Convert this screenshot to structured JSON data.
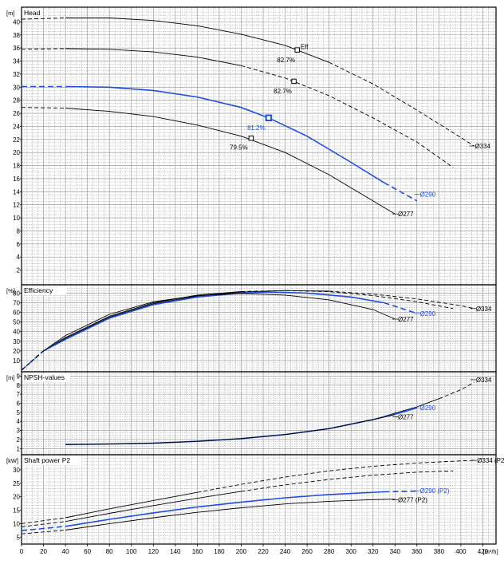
{
  "colors": {
    "selected": "#1f4fd6",
    "other": "#000000",
    "grid": "#8c8c8c",
    "background": "#ffffff"
  },
  "x_axis": {
    "unit": "[m³/h]",
    "ticks": [
      0,
      20,
      40,
      60,
      80,
      100,
      120,
      140,
      160,
      180,
      200,
      220,
      240,
      260,
      280,
      300,
      320,
      340,
      360,
      380,
      400,
      420
    ]
  },
  "chart_data": [
    {
      "type": "line",
      "title": "Head",
      "ylabel": "[m]",
      "xlim": [
        0,
        432
      ],
      "ylim": [
        0,
        42
      ],
      "yticks": [
        2,
        4,
        6,
        8,
        10,
        12,
        14,
        16,
        18,
        20,
        22,
        24,
        26,
        28,
        30,
        32,
        34,
        36,
        38,
        40
      ],
      "series": [
        {
          "name": "Ø334",
          "color": "#000000",
          "selected": false,
          "points": [
            [
              0,
              40.4
            ],
            [
              40,
              40.6
            ],
            [
              80,
              40.6
            ],
            [
              120,
              40.2
            ],
            [
              160,
              39.4
            ],
            [
              200,
              38.1
            ],
            [
              240,
              36.4
            ],
            [
              280,
              33.8
            ],
            [
              320,
              30.5
            ],
            [
              360,
              26.5
            ],
            [
              400,
              22.3
            ],
            [
              412,
              21.0
            ]
          ],
          "solid_range": [
            40,
            280
          ],
          "label_at": [
            412,
            21.0
          ]
        },
        {
          "name": "",
          "color": "#000000",
          "selected": false,
          "points": [
            [
              0,
              35.8
            ],
            [
              40,
              35.9
            ],
            [
              80,
              35.8
            ],
            [
              120,
              35.4
            ],
            [
              160,
              34.6
            ],
            [
              200,
              33.3
            ],
            [
              240,
              31.4
            ],
            [
              280,
              28.7
            ],
            [
              320,
              25.3
            ],
            [
              360,
              21.6
            ],
            [
              393,
              17.7
            ]
          ],
          "solid_range": [
            40,
            210
          ],
          "label_at": null
        },
        {
          "name": "Ø290",
          "color": "#1f4fd6",
          "selected": true,
          "points": [
            [
              0,
              30.1
            ],
            [
              40,
              30.1
            ],
            [
              80,
              30.0
            ],
            [
              120,
              29.5
            ],
            [
              160,
              28.5
            ],
            [
              200,
              26.9
            ],
            [
              225,
              25.3
            ],
            [
              260,
              22.5
            ],
            [
              300,
              18.5
            ],
            [
              330,
              15.4
            ],
            [
              360,
              12.6
            ]
          ],
          "solid_range": [
            40,
            330
          ],
          "label_at": [
            362,
            13.6
          ]
        },
        {
          "name": "Ø277",
          "color": "#000000",
          "selected": false,
          "points": [
            [
              0,
              26.9
            ],
            [
              40,
              26.8
            ],
            [
              80,
              26.3
            ],
            [
              120,
              25.5
            ],
            [
              160,
              24.2
            ],
            [
              200,
              22.5
            ],
            [
              240,
              20.0
            ],
            [
              280,
              16.6
            ],
            [
              320,
              12.6
            ],
            [
              340,
              10.6
            ]
          ],
          "solid_range": [
            40,
            340
          ],
          "label_at": [
            342,
            10.6
          ]
        }
      ],
      "markers": [
        {
          "x": 251,
          "y": 35.7,
          "label": "82.7%",
          "label_pos": [
            249,
            34.2
          ],
          "selected": false
        },
        {
          "x": 248,
          "y": 30.9,
          "label": "82.7%",
          "label_pos": [
            246,
            29.4
          ],
          "selected": false
        },
        {
          "x": 225,
          "y": 25.3,
          "label": "81.2%",
          "label_pos": [
            222,
            23.8
          ],
          "selected": true
        },
        {
          "x": 209,
          "y": 22.2,
          "label": "79.5%",
          "label_pos": [
            206,
            20.8
          ],
          "selected": false
        }
      ],
      "annotations": [
        {
          "text": "Eff",
          "at": [
            254,
            36.2
          ]
        }
      ]
    },
    {
      "type": "line",
      "title": "Efficiency",
      "ylabel": "[%]",
      "xlim": [
        0,
        432
      ],
      "ylim": [
        0,
        87
      ],
      "yticks": [
        10,
        20,
        30,
        40,
        50,
        60,
        70,
        80
      ],
      "series": [
        {
          "name": "Ø334",
          "color": "#000000",
          "selected": false,
          "points": [
            [
              0,
              0
            ],
            [
              10,
              10
            ],
            [
              20,
              20
            ],
            [
              40,
              33
            ],
            [
              80,
              55
            ],
            [
              120,
              69
            ],
            [
              160,
              77
            ],
            [
              200,
              81
            ],
            [
              240,
              82.7
            ],
            [
              280,
              82
            ],
            [
              320,
              79
            ],
            [
              360,
              74
            ],
            [
              400,
              67
            ],
            [
              412,
              64
            ]
          ],
          "solid_range": [
            30,
            280
          ],
          "label_at": [
            413,
            64
          ]
        },
        {
          "name": "",
          "color": "#000000",
          "selected": false,
          "points": [
            [
              0,
              0
            ],
            [
              10,
              10
            ],
            [
              20,
              20
            ],
            [
              40,
              34
            ],
            [
              80,
              56
            ],
            [
              120,
              70
            ],
            [
              160,
              78
            ],
            [
              200,
              81.7
            ],
            [
              240,
              82.6
            ],
            [
              280,
              81.5
            ],
            [
              320,
              77.5
            ],
            [
              360,
              71
            ],
            [
              393,
              64
            ]
          ],
          "solid_range": [
            30,
            210
          ],
          "label_at": null
        },
        {
          "name": "Ø290",
          "color": "#1f4fd6",
          "selected": true,
          "points": [
            [
              0,
              0
            ],
            [
              10,
              10
            ],
            [
              20,
              20
            ],
            [
              40,
              32
            ],
            [
              80,
              54
            ],
            [
              120,
              68
            ],
            [
              160,
              76
            ],
            [
              200,
              80
            ],
            [
              225,
              81.2
            ],
            [
              260,
              80
            ],
            [
              300,
              76
            ],
            [
              330,
              70
            ],
            [
              360,
              59
            ]
          ],
          "solid_range": [
            30,
            330
          ],
          "label_at": [
            362,
            59
          ]
        },
        {
          "name": "Ø277",
          "color": "#000000",
          "selected": false,
          "points": [
            [
              0,
              0
            ],
            [
              10,
              10
            ],
            [
              20,
              20
            ],
            [
              40,
              36
            ],
            [
              80,
              58
            ],
            [
              120,
              71
            ],
            [
              160,
              77.5
            ],
            [
              200,
              79.5
            ],
            [
              240,
              78
            ],
            [
              280,
              73
            ],
            [
              320,
              63
            ],
            [
              340,
              53
            ]
          ],
          "solid_range": [
            30,
            340
          ],
          "label_at": [
            342,
            53
          ]
        }
      ]
    },
    {
      "type": "line",
      "title": "NPSH-values",
      "ylabel": "[m]",
      "xlim": [
        0,
        432
      ],
      "ylim": [
        0.5,
        9.3
      ],
      "yticks": [
        1,
        2,
        3,
        4,
        5,
        6,
        7,
        8,
        9
      ],
      "series": [
        {
          "name": "Ø334",
          "color": "#000000",
          "selected": false,
          "points": [
            [
              40,
              1.45
            ],
            [
              80,
              1.5
            ],
            [
              120,
              1.6
            ],
            [
              160,
              1.8
            ],
            [
              200,
              2.1
            ],
            [
              240,
              2.55
            ],
            [
              280,
              3.2
            ],
            [
              320,
              4.2
            ],
            [
              360,
              5.6
            ],
            [
              380,
              6.5
            ],
            [
              400,
              7.5
            ],
            [
              412,
              8.3
            ]
          ],
          "solid_range": [
            40,
            380
          ],
          "label_at": [
            413,
            8.6
          ]
        },
        {
          "name": "Ø290",
          "color": "#1f4fd6",
          "selected": true,
          "points": [
            [
              40,
              1.45
            ],
            [
              80,
              1.5
            ],
            [
              120,
              1.6
            ],
            [
              160,
              1.8
            ],
            [
              200,
              2.1
            ],
            [
              240,
              2.55
            ],
            [
              280,
              3.2
            ],
            [
              320,
              4.2
            ],
            [
              345,
              4.95
            ],
            [
              360,
              5.5
            ]
          ],
          "solid_range": [
            40,
            360
          ],
          "label_at": [
            362,
            5.5
          ]
        },
        {
          "name": "Ø277",
          "color": "#000000",
          "selected": false,
          "points": [
            [
              40,
              1.45
            ],
            [
              80,
              1.5
            ],
            [
              120,
              1.6
            ],
            [
              160,
              1.8
            ],
            [
              200,
              2.1
            ],
            [
              240,
              2.55
            ],
            [
              280,
              3.2
            ],
            [
              320,
              4.2
            ],
            [
              340,
              4.75
            ]
          ],
          "solid_range": [
            40,
            340
          ],
          "label_at": [
            342,
            4.5
          ]
        }
      ]
    },
    {
      "type": "line",
      "title": "Shaft power P2",
      "ylabel": "[kW]",
      "xlim": [
        0,
        432
      ],
      "ylim": [
        3,
        35
      ],
      "yticks": [
        5,
        10,
        15,
        20,
        25,
        30
      ],
      "series": [
        {
          "name": "Ø334 (P2)",
          "color": "#000000",
          "selected": false,
          "points": [
            [
              0,
              10
            ],
            [
              40,
              12.2
            ],
            [
              80,
              15.5
            ],
            [
              120,
              18.6
            ],
            [
              160,
              21.6
            ],
            [
              200,
              24.6
            ],
            [
              240,
              27.3
            ],
            [
              280,
              29.6
            ],
            [
              320,
              31.3
            ],
            [
              360,
              32.5
            ],
            [
              400,
              33.3
            ],
            [
              412,
              33.5
            ]
          ],
          "solid_range": [
            40,
            160
          ],
          "label_at": [
            414,
            33.5
          ]
        },
        {
          "name": "",
          "color": "#000000",
          "selected": false,
          "points": [
            [
              0,
              8.8
            ],
            [
              40,
              10.8
            ],
            [
              80,
              13.8
            ],
            [
              120,
              16.7
            ],
            [
              160,
              19.4
            ],
            [
              200,
              22.0
            ],
            [
              240,
              24.4
            ],
            [
              280,
              26.4
            ],
            [
              320,
              28.0
            ],
            [
              360,
              29.1
            ],
            [
              393,
              29.6
            ]
          ],
          "solid_range": [
            40,
            210
          ],
          "label_at": null
        },
        {
          "name": "Ø290 (P2)",
          "color": "#1f4fd6",
          "selected": true,
          "points": [
            [
              0,
              7.4
            ],
            [
              40,
              9.0
            ],
            [
              80,
              11.6
            ],
            [
              120,
              14.0
            ],
            [
              160,
              16.2
            ],
            [
              200,
              18.0
            ],
            [
              240,
              19.6
            ],
            [
              280,
              20.8
            ],
            [
              330,
              21.8
            ],
            [
              360,
              22.1
            ]
          ],
          "solid_range": [
            40,
            330
          ],
          "label_at": [
            362,
            22.2
          ]
        },
        {
          "name": "Ø277 (P2)",
          "color": "#000000",
          "selected": false,
          "points": [
            [
              0,
              6.2
            ],
            [
              40,
              7.6
            ],
            [
              80,
              10.0
            ],
            [
              120,
              12.2
            ],
            [
              160,
              14.2
            ],
            [
              200,
              15.9
            ],
            [
              240,
              17.3
            ],
            [
              280,
              18.3
            ],
            [
              320,
              18.9
            ],
            [
              340,
              19.1
            ]
          ],
          "solid_range": [
            40,
            340
          ],
          "label_at": [
            342,
            18.8
          ]
        }
      ]
    }
  ]
}
